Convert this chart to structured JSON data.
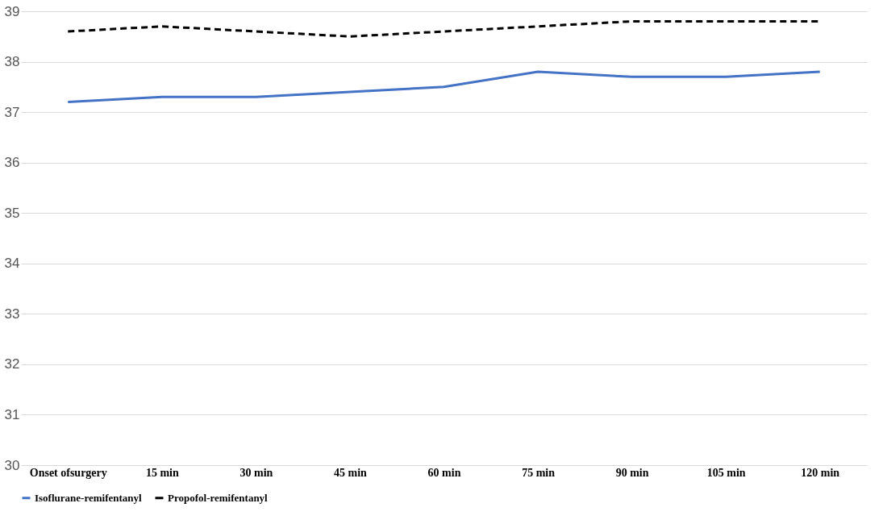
{
  "chart_data": {
    "type": "line",
    "categories": [
      "Onset ofsurgery",
      "15 min",
      "30 min",
      "45 min",
      "60 min",
      "75 min",
      "90 min",
      "105 min",
      "120 min"
    ],
    "series": [
      {
        "name": "Isoflurane-remifentanyl",
        "color": "#4472c4",
        "line_style": "solid",
        "values": [
          37.2,
          37.3,
          37.3,
          37.4,
          37.5,
          37.8,
          37.7,
          37.7,
          37.8
        ]
      },
      {
        "name": "Propofol-remifentanyl",
        "color": "#000000",
        "line_style": "dashed",
        "values": [
          38.6,
          38.7,
          38.6,
          38.5,
          38.6,
          38.7,
          38.8,
          38.8,
          38.8
        ]
      }
    ],
    "ylim": [
      30,
      39
    ],
    "yticks": [
      30,
      31,
      32,
      33,
      34,
      35,
      36,
      37,
      38,
      39
    ],
    "grid": "y",
    "legend": "bottom",
    "marker": "none"
  }
}
